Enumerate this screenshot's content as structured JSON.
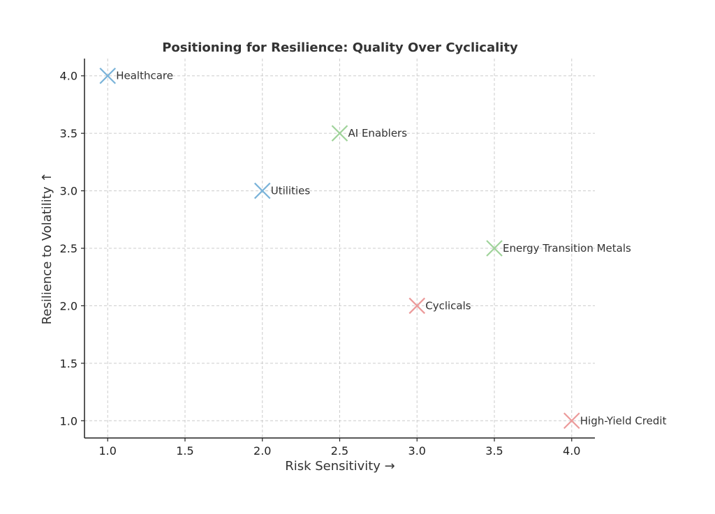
{
  "chart_data": {
    "type": "scatter",
    "title": "Positioning for Resilience: Quality Over Cyclicality",
    "xlabel": "Risk Sensitivity →",
    "ylabel": "Resilience to Volatility ↑",
    "xlim": [
      0.85,
      4.15
    ],
    "ylim": [
      0.85,
      4.15
    ],
    "xticks": [
      "1.0",
      "1.5",
      "2.0",
      "2.5",
      "3.0",
      "3.5",
      "4.0"
    ],
    "yticks": [
      "1.0",
      "1.5",
      "2.0",
      "2.5",
      "3.0",
      "3.5",
      "4.0"
    ],
    "grid": true,
    "marker": "x",
    "points": [
      {
        "label": "Healthcare",
        "x": 1.0,
        "y": 4.0,
        "color": "#7ab3d9"
      },
      {
        "label": "AI Enablers",
        "x": 2.5,
        "y": 3.5,
        "color": "#9fd39a"
      },
      {
        "label": "Utilities",
        "x": 2.0,
        "y": 3.0,
        "color": "#7ab3d9"
      },
      {
        "label": "Energy Transition Metals",
        "x": 3.5,
        "y": 2.5,
        "color": "#9fd39a"
      },
      {
        "label": "Cyclicals",
        "x": 3.0,
        "y": 2.0,
        "color": "#ec9a9a"
      },
      {
        "label": "High-Yield Credit",
        "x": 4.0,
        "y": 1.0,
        "color": "#ec9a9a"
      }
    ]
  }
}
